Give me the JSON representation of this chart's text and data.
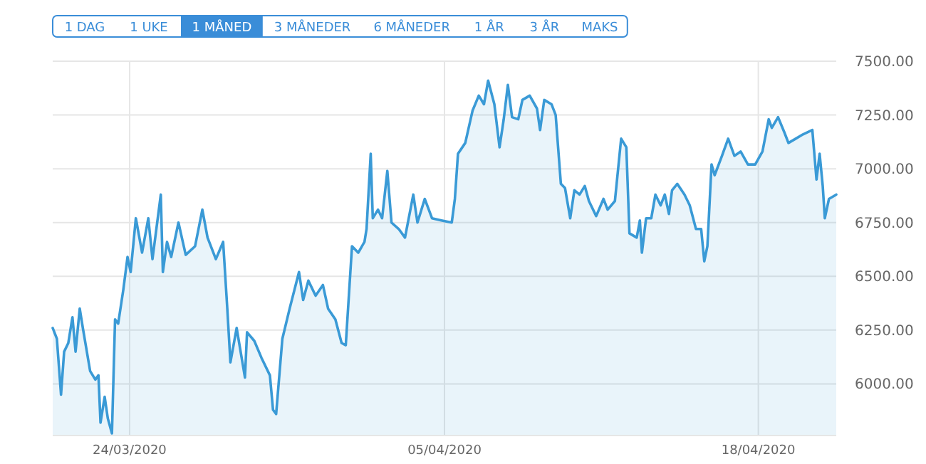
{
  "chart_data": {
    "type": "area",
    "annotations": [
      "1 DAG",
      "1 UKE",
      "1 MÅNED",
      "3 MÅNEDER",
      "6 MÅNEDER",
      "1 ÅR",
      "3 ÅR",
      "MAKS"
    ],
    "x": [
      "2020-03-20T22:00",
      "2020-03-21T02:00",
      "2020-03-21T06:00",
      "2020-03-21T09:00",
      "2020-03-21T13:00",
      "2020-03-21T17:00",
      "2020-03-21T20:00",
      "2020-03-22T00:00",
      "2020-03-22T03:00",
      "2020-03-22T10:00",
      "2020-03-22T15:00",
      "2020-03-22T18:00",
      "2020-03-22T20:00",
      "2020-03-23T00:00",
      "2020-03-23T03:00",
      "2020-03-23T07:00",
      "2020-03-23T10:00",
      "2020-03-23T13:00",
      "2020-03-23T18:00",
      "2020-03-23T22:00",
      "2020-03-24T01:00",
      "2020-03-24T06:00",
      "2020-03-24T12:00",
      "2020-03-24T18:00",
      "2020-03-24T22:00",
      "2020-03-25T06:00",
      "2020-03-25T08:00",
      "2020-03-25T12:00",
      "2020-03-25T16:00",
      "2020-03-25T23:00",
      "2020-03-26T06:00",
      "2020-03-26T15:00",
      "2020-03-26T22:00",
      "2020-03-27T03:00",
      "2020-03-27T11:00",
      "2020-03-27T18:00",
      "2020-03-27T22:00",
      "2020-03-28T01:00",
      "2020-03-28T07:00",
      "2020-03-28T15:00",
      "2020-03-28T17:00",
      "2020-03-29T00:00",
      "2020-03-29T07:00",
      "2020-03-29T15:00",
      "2020-03-29T18:00",
      "2020-03-29T21:00",
      "2020-03-30T03:00",
      "2020-03-30T10:00",
      "2020-03-30T19:00",
      "2020-03-30T23:00",
      "2020-03-31T04:00",
      "2020-03-31T11:00",
      "2020-03-31T18:00",
      "2020-03-31T23:00",
      "2020-04-01T06:00",
      "2020-04-01T12:00",
      "2020-04-01T16:00",
      "2020-04-01T22:00",
      "2020-04-02T04:00",
      "2020-04-02T10:00",
      "2020-04-02T12:00",
      "2020-04-02T16:00",
      "2020-04-02T18:00",
      "2020-04-02T23:00",
      "2020-04-03T03:00",
      "2020-04-03T08:00",
      "2020-04-03T12:00",
      "2020-04-03T19:00",
      "2020-04-04T01:00",
      "2020-04-04T09:00",
      "2020-04-04T13:00",
      "2020-04-04T20:00",
      "2020-04-05T03:00",
      "2020-04-05T12:00",
      "2020-04-05T22:00",
      "2020-04-06T01:00",
      "2020-04-06T04:00",
      "2020-04-06T11:00",
      "2020-04-06T18:00",
      "2020-04-07T00:00",
      "2020-04-07T05:00",
      "2020-04-07T09:00",
      "2020-04-07T15:00",
      "2020-04-07T20:00",
      "2020-04-08T00:00",
      "2020-04-08T04:00",
      "2020-04-08T08:00",
      "2020-04-08T14:00",
      "2020-04-08T18:00",
      "2020-04-09T01:00",
      "2020-04-09T08:00",
      "2020-04-09T11:00",
      "2020-04-09T15:00",
      "2020-04-09T22:00",
      "2020-04-10T02:00",
      "2020-04-10T07:00",
      "2020-04-10T11:00",
      "2020-04-10T16:00",
      "2020-04-10T20:00",
      "2020-04-11T01:00",
      "2020-04-11T06:00",
      "2020-04-11T10:00",
      "2020-04-11T17:00",
      "2020-04-12T00:00",
      "2020-04-12T04:00",
      "2020-04-12T11:00",
      "2020-04-12T17:00",
      "2020-04-12T22:00",
      "2020-04-13T01:00",
      "2020-04-13T08:00",
      "2020-04-13T11:00",
      "2020-04-13T13:00",
      "2020-04-13T17:00",
      "2020-04-13T22:00",
      "2020-04-14T02:00",
      "2020-04-14T07:00",
      "2020-04-14T11:00",
      "2020-04-14T15:00",
      "2020-04-14T18:00",
      "2020-04-14T23:00",
      "2020-04-15T06:00",
      "2020-04-15T11:00",
      "2020-04-15T17:00",
      "2020-04-15T22:00",
      "2020-04-16T01:00",
      "2020-04-16T04:00",
      "2020-04-16T08:00",
      "2020-04-16T11:00",
      "2020-04-16T18:00",
      "2020-04-17T00:00",
      "2020-04-17T06:00",
      "2020-04-17T12:00",
      "2020-04-17T19:00",
      "2020-04-18T02:00",
      "2020-04-18T09:00",
      "2020-04-18T15:00",
      "2020-04-18T18:00",
      "2020-04-19T00:00",
      "2020-04-19T06:00",
      "2020-04-19T10:00",
      "2020-04-19T17:00",
      "2020-04-20T00:00",
      "2020-04-20T09:00",
      "2020-04-20T13:00",
      "2020-04-20T16:00",
      "2020-04-20T19:00",
      "2020-04-20T21:00",
      "2020-04-21T01:00",
      "2020-04-21T08:00"
    ],
    "series": [
      {
        "color": "#3a9ad6",
        "values": [
          6260,
          6210,
          5950,
          6150,
          6190,
          6310,
          6150,
          6350,
          6260,
          6060,
          6020,
          6040,
          5820,
          5940,
          5840,
          5770,
          6300,
          6280,
          6440,
          6590,
          6520,
          6770,
          6610,
          6770,
          6580,
          6880,
          6520,
          6660,
          6590,
          6750,
          6600,
          6640,
          6810,
          6680,
          6580,
          6660,
          6350,
          6100,
          6260,
          6030,
          6240,
          6200,
          6120,
          6040,
          5880,
          5860,
          6210,
          6350,
          6520,
          6390,
          6480,
          6410,
          6460,
          6350,
          6300,
          6190,
          6180,
          6640,
          6610,
          6660,
          6720,
          7070,
          6770,
          6810,
          6770,
          6990,
          6750,
          6720,
          6680,
          6880,
          6750,
          6860,
          6770,
          6760,
          6750,
          6860,
          7070,
          7120,
          7270,
          7340,
          7300,
          7410,
          7300,
          7100,
          7230,
          7390,
          7240,
          7230,
          7320,
          7340,
          7280,
          7180,
          7320,
          7300,
          7250,
          6930,
          6910,
          6770,
          6900,
          6880,
          6920,
          6850,
          6780,
          6860,
          6810,
          6850,
          7140,
          7100,
          6700,
          6680,
          6760,
          6610,
          6770,
          6770,
          6880,
          6830,
          6880,
          6790,
          6900,
          6930,
          6880,
          6830,
          6720,
          6720,
          6570,
          6640,
          7020,
          6970,
          7060,
          7140,
          7060,
          7080,
          7020,
          7020,
          7080,
          7230,
          7190,
          7240,
          7170,
          7120,
          7140,
          7160,
          7180,
          6950,
          7070,
          6920,
          6770,
          6860,
          6880
        ]
      }
    ],
    "xlim": [
      "2020-03-20T22:00",
      "2020-04-21T08:00"
    ],
    "xticks": [
      {
        "value": "2020-03-24T00:00",
        "label": "24/03/2020"
      },
      {
        "value": "2020-04-05T15:00",
        "label": "05/04/2020"
      },
      {
        "value": "2020-04-18T05:00",
        "label": "18/04/2020"
      }
    ],
    "ylim": [
      5760,
      7500
    ],
    "yticks": [
      {
        "value": 6000,
        "label": "6000.00"
      },
      {
        "value": 6250,
        "label": "6250.00"
      },
      {
        "value": 6500,
        "label": "6500.00"
      },
      {
        "value": 6750,
        "label": "6750.00"
      },
      {
        "value": 7000,
        "label": "7000.00"
      },
      {
        "value": 7250,
        "label": "7250.00"
      },
      {
        "value": 7500,
        "label": "7500.00"
      }
    ],
    "grid": true
  }
}
